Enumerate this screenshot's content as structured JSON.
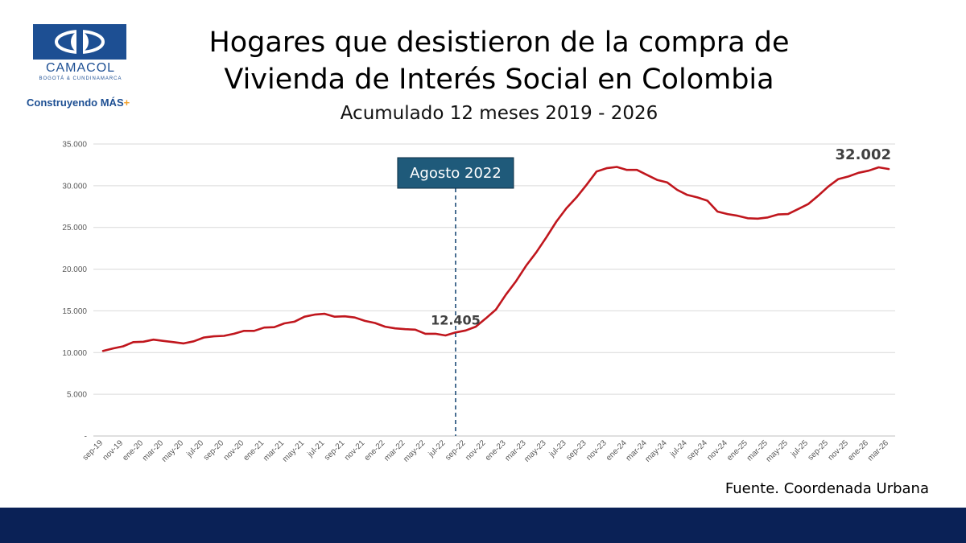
{
  "brand": {
    "name": "CAMACOL",
    "region": "BOGOTÁ & CUNDINAMARCA",
    "tagline": "Construyendo MÁS",
    "tagline_mark": "+",
    "colors": {
      "primary": "#1d4f93",
      "accent": "#f3a12b",
      "footer": "#0a2156"
    }
  },
  "header": {
    "title_line1": "Hogares que desistieron de la compra de",
    "title_line2": "Vivienda de Interés Social en Colombia",
    "subtitle": "Acumulado 12 meses 2019 - 2026"
  },
  "source": "Fuente. Coordenada Urbana",
  "chart_data": {
    "type": "line",
    "title": "Hogares que desistieron de la compra de Vivienda de Interés Social en Colombia",
    "subtitle": "Acumulado 12 meses 2019 - 2026",
    "xlabel": "",
    "ylabel": "",
    "ylim": [
      0,
      35000
    ],
    "yticks": [
      0,
      5000,
      10000,
      15000,
      20000,
      25000,
      30000,
      35000
    ],
    "ytick_labels": [
      "-",
      "5.000",
      "10.000",
      "15.000",
      "20.000",
      "25.000",
      "30.000",
      "35.000"
    ],
    "grid": true,
    "line_color": "#c0161d",
    "x_tick_labels": [
      "sep-19",
      "nov-19",
      "ene-20",
      "mar-20",
      "may-20",
      "jul-20",
      "sep-20",
      "nov-20",
      "ene-21",
      "mar-21",
      "may-21",
      "jul-21",
      "sep-21",
      "nov-21",
      "ene-22",
      "mar-22",
      "may-22",
      "jul-22",
      "sep-22",
      "nov-22",
      "ene-23",
      "mar-23",
      "may-23",
      "jul-23",
      "sep-23",
      "nov-23",
      "ene-24",
      "mar-24",
      "may-24",
      "jul-24",
      "sep-24",
      "nov-24",
      "ene-25",
      "mar-25",
      "may-25",
      "jul-25",
      "sep-25",
      "nov-25",
      "ene-26",
      "mar-26"
    ],
    "x": [
      "sep-19",
      "oct-19",
      "nov-19",
      "dic-19",
      "ene-20",
      "feb-20",
      "mar-20",
      "abr-20",
      "may-20",
      "jun-20",
      "jul-20",
      "ago-20",
      "sep-20",
      "oct-20",
      "nov-20",
      "dic-20",
      "ene-21",
      "feb-21",
      "mar-21",
      "abr-21",
      "may-21",
      "jun-21",
      "jul-21",
      "ago-21",
      "sep-21",
      "oct-21",
      "nov-21",
      "dic-21",
      "ene-22",
      "feb-22",
      "mar-22",
      "abr-22",
      "may-22",
      "jun-22",
      "jul-22",
      "ago-22",
      "sep-22",
      "oct-22",
      "nov-22",
      "dic-22",
      "ene-23",
      "feb-23",
      "mar-23",
      "abr-23",
      "may-23",
      "jun-23",
      "jul-23",
      "ago-23",
      "sep-23",
      "oct-23",
      "nov-23",
      "dic-23",
      "ene-24",
      "feb-24",
      "mar-24",
      "abr-24",
      "may-24",
      "jun-24",
      "jul-24",
      "ago-24",
      "sep-24",
      "oct-24",
      "nov-24",
      "dic-24",
      "ene-25",
      "feb-25",
      "mar-25",
      "abr-25",
      "may-25",
      "jun-25",
      "jul-25",
      "ago-25",
      "sep-25",
      "oct-25",
      "nov-25",
      "dic-25",
      "ene-26",
      "feb-26",
      "mar-26"
    ],
    "series": [
      {
        "values": [
          10200,
          10500,
          10750,
          11250,
          11300,
          11550,
          11400,
          11250,
          11100,
          11350,
          11800,
          11950,
          12000,
          12250,
          12600,
          12600,
          13000,
          13050,
          13500,
          13700,
          14300,
          14550,
          14650,
          14300,
          14350,
          14200,
          13800,
          13550,
          13100,
          12900,
          12800,
          12750,
          12250,
          12250,
          12050,
          12405,
          12650,
          13100,
          14100,
          15150,
          16950,
          18550,
          20400,
          22000,
          23800,
          25700,
          27300,
          28600,
          30100,
          31700,
          32100,
          32250,
          31900,
          31900,
          31300,
          30700,
          30400,
          29500,
          28900,
          28600,
          28200,
          26900,
          26600,
          26400,
          26100,
          26050,
          26200,
          26550,
          26600,
          27200,
          27800,
          28800,
          29900,
          30800,
          31100,
          31550,
          31800,
          32200,
          32002
        ]
      }
    ],
    "annotations": [
      {
        "text": "Agosto 2022",
        "x": "ago-22",
        "style": "box",
        "vertical_line": "dashed"
      },
      {
        "text": "12.405",
        "x": "ago-22",
        "y": 12405
      },
      {
        "text": "32.002",
        "x": "mar-26",
        "y": 32002
      }
    ]
  }
}
